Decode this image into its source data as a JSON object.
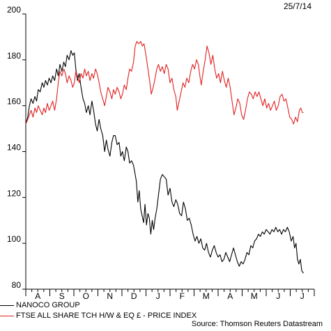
{
  "date_stamp": "25/7/14",
  "source": "Source: Thomson Reuters Datastream",
  "legend": [
    {
      "label": "NANOCO GROUP",
      "color": "#000000"
    },
    {
      "label": "FTSE ALL SHARE TCH H/W & EQ £ - PRICE INDEX",
      "color": "#e02020"
    }
  ],
  "chart_data": {
    "type": "line",
    "title": "",
    "xlabel": "",
    "ylabel": "",
    "ylim": [
      80,
      200
    ],
    "yticks": [
      80,
      100,
      120,
      140,
      160,
      180,
      200
    ],
    "month_labels": [
      "A",
      "S",
      "O",
      "N",
      "D",
      "J",
      "F",
      "M",
      "A",
      "M",
      "J",
      "J"
    ],
    "x_unit": "months elapsed since start of axis (Jul 2013 - Jul 2014)",
    "series": [
      {
        "name": "NANOCO GROUP",
        "color": "#000000",
        "points": [
          [
            0.0,
            152
          ],
          [
            0.08,
            155
          ],
          [
            0.15,
            160
          ],
          [
            0.22,
            163
          ],
          [
            0.3,
            161
          ],
          [
            0.38,
            164
          ],
          [
            0.45,
            162
          ],
          [
            0.52,
            167
          ],
          [
            0.6,
            166
          ],
          [
            0.68,
            170
          ],
          [
            0.75,
            168
          ],
          [
            0.82,
            171
          ],
          [
            0.9,
            169
          ],
          [
            0.97,
            172
          ],
          [
            1.05,
            170
          ],
          [
            1.12,
            173
          ],
          [
            1.2,
            171
          ],
          [
            1.28,
            176
          ],
          [
            1.35,
            173
          ],
          [
            1.42,
            178
          ],
          [
            1.5,
            175
          ],
          [
            1.58,
            179
          ],
          [
            1.65,
            177
          ],
          [
            1.72,
            182
          ],
          [
            1.8,
            180
          ],
          [
            1.88,
            184
          ],
          [
            1.95,
            182
          ],
          [
            2.02,
            183
          ],
          [
            2.08,
            176
          ],
          [
            2.15,
            171
          ],
          [
            2.22,
            174
          ],
          [
            2.3,
            168
          ],
          [
            2.38,
            163
          ],
          [
            2.45,
            161
          ],
          [
            2.52,
            157
          ],
          [
            2.6,
            160
          ],
          [
            2.67,
            156
          ],
          [
            2.75,
            162
          ],
          [
            2.82,
            158
          ],
          [
            2.9,
            152
          ],
          [
            2.97,
            149
          ],
          [
            3.05,
            154
          ],
          [
            3.12,
            150
          ],
          [
            3.2,
            147
          ],
          [
            3.28,
            140
          ],
          [
            3.35,
            145
          ],
          [
            3.42,
            141
          ],
          [
            3.5,
            138
          ],
          [
            3.58,
            144
          ],
          [
            3.65,
            147
          ],
          [
            3.72,
            147
          ],
          [
            3.8,
            143
          ],
          [
            3.88,
            144
          ],
          [
            3.95,
            138
          ],
          [
            4.02,
            140
          ],
          [
            4.1,
            136
          ],
          [
            4.18,
            142
          ],
          [
            4.25,
            140
          ],
          [
            4.32,
            135
          ],
          [
            4.4,
            136
          ],
          [
            4.48,
            134
          ],
          [
            4.55,
            130
          ],
          [
            4.6,
            127
          ],
          [
            4.66,
            118
          ],
          [
            4.72,
            123
          ],
          [
            4.78,
            115
          ],
          [
            4.84,
            112
          ],
          [
            4.9,
            109
          ],
          [
            4.96,
            117
          ],
          [
            5.02,
            108
          ],
          [
            5.08,
            113
          ],
          [
            5.14,
            111
          ],
          [
            5.2,
            104
          ],
          [
            5.26,
            110
          ],
          [
            5.32,
            106
          ],
          [
            5.38,
            111
          ],
          [
            5.45,
            115
          ],
          [
            5.52,
            121
          ],
          [
            5.6,
            128
          ],
          [
            5.68,
            130
          ],
          [
            5.76,
            129
          ],
          [
            5.84,
            128
          ],
          [
            5.92,
            121
          ],
          [
            6.0,
            124
          ],
          [
            6.08,
            118
          ],
          [
            6.16,
            116
          ],
          [
            6.24,
            119
          ],
          [
            6.32,
            117
          ],
          [
            6.4,
            113
          ],
          [
            6.48,
            112
          ],
          [
            6.56,
            118
          ],
          [
            6.64,
            115
          ],
          [
            6.72,
            110
          ],
          [
            6.8,
            111
          ],
          [
            6.88,
            108
          ],
          [
            6.96,
            104
          ],
          [
            7.04,
            101
          ],
          [
            7.12,
            103
          ],
          [
            7.2,
            100
          ],
          [
            7.28,
            102
          ],
          [
            7.36,
            98
          ],
          [
            7.44,
            97
          ],
          [
            7.52,
            100
          ],
          [
            7.6,
            96
          ],
          [
            7.68,
            94
          ],
          [
            7.76,
            97
          ],
          [
            7.84,
            99
          ],
          [
            7.92,
            96
          ],
          [
            8.0,
            94
          ],
          [
            8.08,
            95
          ],
          [
            8.16,
            92
          ],
          [
            8.24,
            93
          ],
          [
            8.32,
            96
          ],
          [
            8.4,
            94
          ],
          [
            8.48,
            92
          ],
          [
            8.56,
            95
          ],
          [
            8.64,
            98
          ],
          [
            8.72,
            95
          ],
          [
            8.8,
            92
          ],
          [
            8.88,
            90
          ],
          [
            8.96,
            92
          ],
          [
            9.04,
            91
          ],
          [
            9.12,
            93
          ],
          [
            9.2,
            96
          ],
          [
            9.28,
            95
          ],
          [
            9.36,
            99
          ],
          [
            9.44,
            98
          ],
          [
            9.52,
            101
          ],
          [
            9.6,
            102
          ],
          [
            9.68,
            104
          ],
          [
            9.76,
            103
          ],
          [
            9.84,
            105
          ],
          [
            9.92,
            104
          ],
          [
            10.0,
            106
          ],
          [
            10.08,
            105
          ],
          [
            10.16,
            104
          ],
          [
            10.24,
            106
          ],
          [
            10.32,
            105
          ],
          [
            10.4,
            107
          ],
          [
            10.48,
            105
          ],
          [
            10.56,
            106
          ],
          [
            10.64,
            104
          ],
          [
            10.72,
            106
          ],
          [
            10.8,
            105
          ],
          [
            10.88,
            107
          ],
          [
            10.96,
            105
          ],
          [
            11.04,
            101
          ],
          [
            11.12,
            103
          ],
          [
            11.18,
            98
          ],
          [
            11.24,
            100
          ],
          [
            11.3,
            93
          ],
          [
            11.36,
            91
          ],
          [
            11.42,
            93
          ],
          [
            11.48,
            88
          ],
          [
            11.55,
            87
          ]
        ]
      },
      {
        "name": "FTSE ALL SHARE TCH H/W & EQ £ - PRICE INDEX",
        "color": "#e02020",
        "points": [
          [
            0.0,
            152
          ],
          [
            0.08,
            154
          ],
          [
            0.15,
            156
          ],
          [
            0.22,
            158
          ],
          [
            0.3,
            155
          ],
          [
            0.38,
            159
          ],
          [
            0.45,
            157
          ],
          [
            0.52,
            160
          ],
          [
            0.6,
            158
          ],
          [
            0.68,
            156
          ],
          [
            0.75,
            159
          ],
          [
            0.82,
            157
          ],
          [
            0.9,
            161
          ],
          [
            0.97,
            158
          ],
          [
            1.05,
            160
          ],
          [
            1.12,
            162
          ],
          [
            1.2,
            158
          ],
          [
            1.28,
            163
          ],
          [
            1.35,
            170
          ],
          [
            1.42,
            175
          ],
          [
            1.5,
            173
          ],
          [
            1.58,
            176
          ],
          [
            1.65,
            174
          ],
          [
            1.72,
            170
          ],
          [
            1.8,
            173
          ],
          [
            1.88,
            171
          ],
          [
            1.95,
            168
          ],
          [
            2.02,
            170
          ],
          [
            2.08,
            175
          ],
          [
            2.15,
            173
          ],
          [
            2.22,
            170
          ],
          [
            2.3,
            174
          ],
          [
            2.38,
            172
          ],
          [
            2.45,
            176
          ],
          [
            2.52,
            173
          ],
          [
            2.6,
            175
          ],
          [
            2.67,
            171
          ],
          [
            2.75,
            174
          ],
          [
            2.82,
            172
          ],
          [
            2.9,
            176
          ],
          [
            2.97,
            174
          ],
          [
            3.05,
            170
          ],
          [
            3.12,
            166
          ],
          [
            3.2,
            163
          ],
          [
            3.28,
            160
          ],
          [
            3.35,
            164
          ],
          [
            3.42,
            168
          ],
          [
            3.5,
            166
          ],
          [
            3.58,
            163
          ],
          [
            3.65,
            167
          ],
          [
            3.72,
            165
          ],
          [
            3.8,
            168
          ],
          [
            3.88,
            166
          ],
          [
            3.95,
            163
          ],
          [
            4.02,
            165
          ],
          [
            4.1,
            169
          ],
          [
            4.18,
            167
          ],
          [
            4.25,
            172
          ],
          [
            4.32,
            176
          ],
          [
            4.4,
            175
          ],
          [
            4.48,
            179
          ],
          [
            4.55,
            186
          ],
          [
            4.62,
            188
          ],
          [
            4.7,
            187
          ],
          [
            4.78,
            188
          ],
          [
            4.85,
            186
          ],
          [
            4.92,
            187
          ],
          [
            5.0,
            182
          ],
          [
            5.08,
            176
          ],
          [
            5.15,
            171
          ],
          [
            5.22,
            165
          ],
          [
            5.3,
            168
          ],
          [
            5.38,
            172
          ],
          [
            5.45,
            176
          ],
          [
            5.52,
            178
          ],
          [
            5.6,
            175
          ],
          [
            5.68,
            177
          ],
          [
            5.76,
            174
          ],
          [
            5.84,
            178
          ],
          [
            5.92,
            176
          ],
          [
            6.0,
            170
          ],
          [
            6.08,
            172
          ],
          [
            6.16,
            167
          ],
          [
            6.24,
            164
          ],
          [
            6.3,
            158
          ],
          [
            6.38,
            162
          ],
          [
            6.46,
            166
          ],
          [
            6.54,
            170
          ],
          [
            6.62,
            168
          ],
          [
            6.7,
            172
          ],
          [
            6.78,
            170
          ],
          [
            6.86,
            175
          ],
          [
            6.94,
            178
          ],
          [
            7.02,
            176
          ],
          [
            7.1,
            180
          ],
          [
            7.18,
            178
          ],
          [
            7.24,
            173
          ],
          [
            7.3,
            169
          ],
          [
            7.38,
            175
          ],
          [
            7.46,
            180
          ],
          [
            7.54,
            186
          ],
          [
            7.62,
            183
          ],
          [
            7.7,
            178
          ],
          [
            7.78,
            182
          ],
          [
            7.86,
            176
          ],
          [
            7.94,
            172
          ],
          [
            8.02,
            174
          ],
          [
            8.1,
            170
          ],
          [
            8.18,
            175
          ],
          [
            8.26,
            171
          ],
          [
            8.34,
            168
          ],
          [
            8.42,
            172
          ],
          [
            8.5,
            168
          ],
          [
            8.58,
            162
          ],
          [
            8.66,
            156
          ],
          [
            8.74,
            159
          ],
          [
            8.82,
            163
          ],
          [
            8.9,
            161
          ],
          [
            8.98,
            156
          ],
          [
            9.06,
            154
          ],
          [
            9.14,
            158
          ],
          [
            9.22,
            163
          ],
          [
            9.3,
            166
          ],
          [
            9.38,
            165
          ],
          [
            9.46,
            163
          ],
          [
            9.54,
            166
          ],
          [
            9.62,
            164
          ],
          [
            9.7,
            166
          ],
          [
            9.78,
            163
          ],
          [
            9.86,
            160
          ],
          [
            9.94,
            163
          ],
          [
            10.02,
            159
          ],
          [
            10.1,
            161
          ],
          [
            10.18,
            158
          ],
          [
            10.26,
            160
          ],
          [
            10.34,
            162
          ],
          [
            10.42,
            158
          ],
          [
            10.5,
            160
          ],
          [
            10.58,
            164
          ],
          [
            10.66,
            165
          ],
          [
            10.74,
            162
          ],
          [
            10.82,
            163
          ],
          [
            10.9,
            159
          ],
          [
            10.98,
            155
          ],
          [
            11.06,
            154
          ],
          [
            11.14,
            152
          ],
          [
            11.22,
            155
          ],
          [
            11.3,
            153
          ],
          [
            11.38,
            158
          ],
          [
            11.44,
            159
          ],
          [
            11.5,
            157
          ],
          [
            11.55,
            157
          ]
        ]
      }
    ]
  }
}
